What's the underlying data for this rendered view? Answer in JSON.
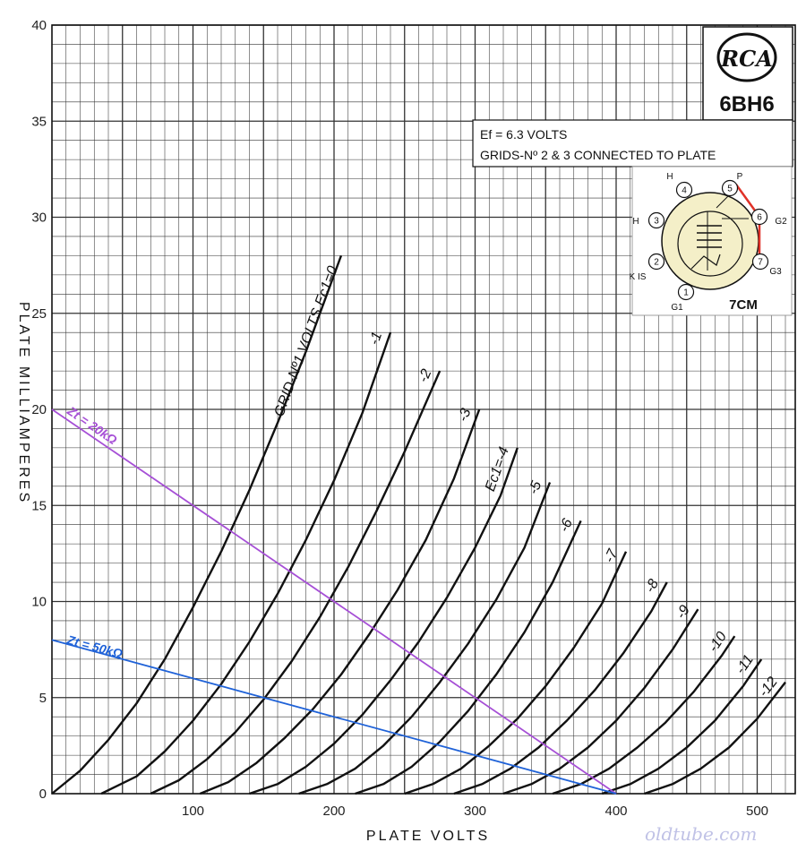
{
  "chart_data": {
    "type": "line",
    "xlabel": "PLATE VOLTS",
    "ylabel": "PLATE MILLIAMPERES",
    "xlim": [
      0,
      520
    ],
    "ylim": [
      0,
      40
    ],
    "xticks": [
      "100",
      "200",
      "300",
      "400",
      "500"
    ],
    "yticks": [
      "0",
      "5",
      "10",
      "15",
      "20",
      "25",
      "30",
      "35",
      "40"
    ],
    "grid": true,
    "family_label": "GRID-Nº1 VOLTS Ec1=0",
    "series": [
      {
        "name": "0",
        "label": "GRID-Nº1 VOLTS Ec1=0",
        "x": [
          0,
          20,
          40,
          60,
          80,
          100,
          120,
          140,
          160,
          180,
          205
        ],
        "y": [
          0,
          1.2,
          2.8,
          4.7,
          7.0,
          9.7,
          12.6,
          15.8,
          19.3,
          23.0,
          28.0
        ]
      },
      {
        "name": "-1",
        "label": "-1",
        "x": [
          35,
          60,
          80,
          100,
          120,
          140,
          160,
          180,
          200,
          220,
          240
        ],
        "y": [
          0,
          0.9,
          2.2,
          3.8,
          5.7,
          7.9,
          10.4,
          13.2,
          16.3,
          19.8,
          24.0
        ]
      },
      {
        "name": "-2",
        "label": "-2",
        "x": [
          70,
          90,
          110,
          130,
          150,
          170,
          190,
          210,
          230,
          250,
          275
        ],
        "y": [
          0,
          0.7,
          1.8,
          3.2,
          4.9,
          6.9,
          9.2,
          11.8,
          14.7,
          17.8,
          22.0
        ]
      },
      {
        "name": "-3",
        "label": "-3",
        "x": [
          105,
          125,
          145,
          165,
          185,
          205,
          225,
          245,
          265,
          285,
          303
        ],
        "y": [
          0,
          0.6,
          1.6,
          2.9,
          4.4,
          6.2,
          8.3,
          10.6,
          13.2,
          16.4,
          20.0
        ]
      },
      {
        "name": "-4",
        "label": "Ec1=-4",
        "x": [
          140,
          160,
          180,
          200,
          220,
          240,
          260,
          280,
          300,
          318,
          330
        ],
        "y": [
          0,
          0.5,
          1.4,
          2.6,
          4.1,
          5.9,
          7.9,
          10.2,
          12.8,
          15.5,
          18.0
        ]
      },
      {
        "name": "-5",
        "label": "-5",
        "x": [
          175,
          195,
          215,
          235,
          255,
          275,
          295,
          315,
          335,
          353
        ],
        "y": [
          0,
          0.5,
          1.3,
          2.5,
          4.0,
          5.8,
          7.8,
          10.1,
          12.8,
          16.2
        ]
      },
      {
        "name": "-6",
        "label": "-6",
        "x": [
          215,
          235,
          255,
          275,
          295,
          315,
          335,
          355,
          375
        ],
        "y": [
          0,
          0.5,
          1.4,
          2.7,
          4.3,
          6.2,
          8.4,
          11.0,
          14.2
        ]
      },
      {
        "name": "-7",
        "label": "-7",
        "x": [
          250,
          270,
          290,
          310,
          330,
          350,
          370,
          390,
          407
        ],
        "y": [
          0,
          0.5,
          1.3,
          2.5,
          3.9,
          5.6,
          7.6,
          9.9,
          12.6
        ]
      },
      {
        "name": "-8",
        "label": "-8",
        "x": [
          285,
          305,
          325,
          345,
          365,
          385,
          405,
          425,
          436
        ],
        "y": [
          0,
          0.5,
          1.3,
          2.4,
          3.8,
          5.4,
          7.3,
          9.5,
          11.0
        ]
      },
      {
        "name": "-9",
        "label": "-9",
        "x": [
          320,
          340,
          360,
          380,
          400,
          420,
          440,
          458
        ],
        "y": [
          0,
          0.5,
          1.3,
          2.4,
          3.8,
          5.5,
          7.5,
          9.6
        ]
      },
      {
        "name": "-10",
        "label": "-10",
        "x": [
          355,
          375,
          395,
          415,
          435,
          455,
          475,
          484
        ],
        "y": [
          0,
          0.5,
          1.3,
          2.4,
          3.7,
          5.3,
          7.2,
          8.2
        ]
      },
      {
        "name": "-11",
        "label": "-11",
        "x": [
          390,
          410,
          430,
          450,
          470,
          490,
          503
        ],
        "y": [
          0,
          0.5,
          1.3,
          2.4,
          3.8,
          5.6,
          7.0
        ]
      },
      {
        "name": "-12",
        "label": "-12",
        "x": [
          420,
          440,
          460,
          480,
          500,
          520
        ],
        "y": [
          0,
          0.5,
          1.3,
          2.4,
          3.9,
          5.8
        ]
      }
    ],
    "load_lines": [
      {
        "name": "Zt = 20kΩ",
        "x": [
          0,
          400
        ],
        "y": [
          20,
          0
        ],
        "color": "#a64fd6"
      },
      {
        "name": "Zt = 50kΩ",
        "x": [
          0,
          400
        ],
        "y": [
          8,
          0
        ],
        "color": "#1f62d8"
      }
    ]
  },
  "info": {
    "brand": "RCA",
    "tube": "6BH6",
    "line1": "Ef = 6.3 VOLTS",
    "line2": "GRIDS-Nº 2 & 3 CONNECTED TO PLATE"
  },
  "basing": {
    "code": "7CM",
    "pins": [
      {
        "num": "1",
        "label": "G1"
      },
      {
        "num": "2",
        "label": "K IS"
      },
      {
        "num": "3",
        "label": "H"
      },
      {
        "num": "4",
        "label": "H"
      },
      {
        "num": "5",
        "label": "P"
      },
      {
        "num": "6",
        "label": "G2"
      },
      {
        "num": "7",
        "label": "G3"
      }
    ],
    "strap_color": "#e03228"
  },
  "watermark": "oldtube.com"
}
